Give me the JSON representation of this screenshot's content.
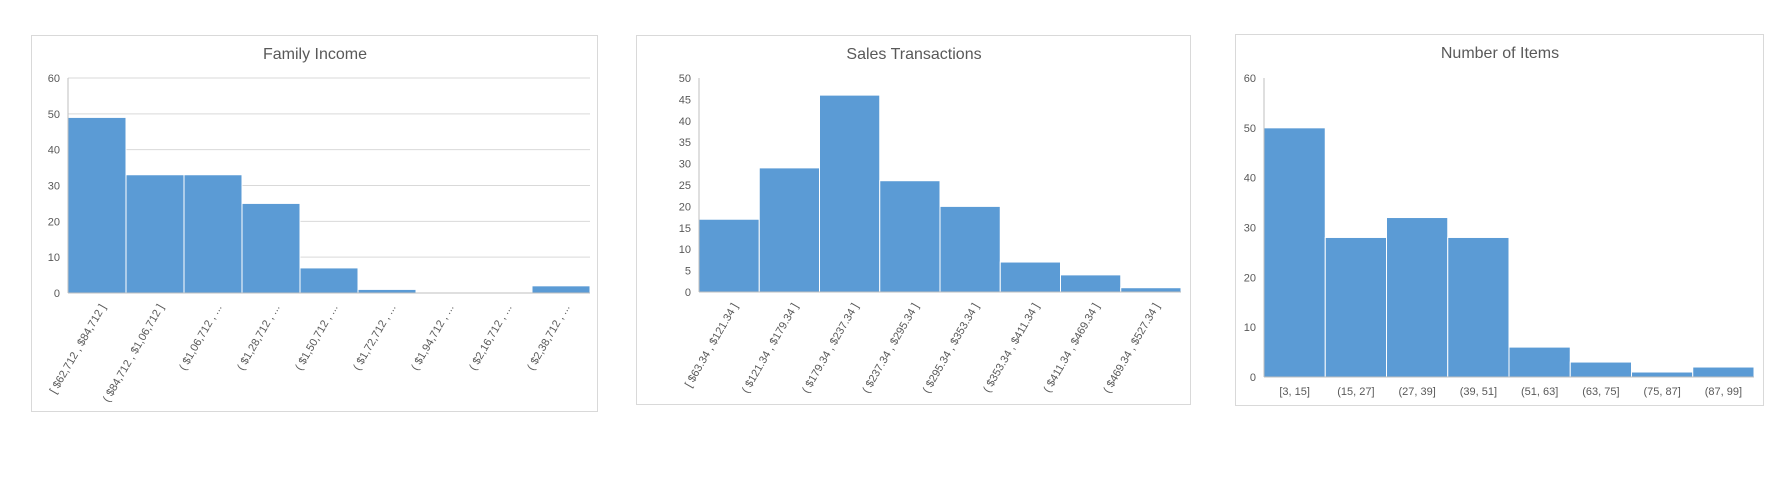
{
  "colors": {
    "bar": "#5b9bd5",
    "grid": "#d9d9d9",
    "axis": "#bfbfbf",
    "text": "#595959"
  },
  "chart_data": [
    {
      "type": "bar",
      "title": "Family Income",
      "categories": [
        "[ $62,712 , $84,712 ]",
        "( $84,712 , $1,06,712 ]",
        "( $1,06,712 , ...",
        "( $1,28,712 , ...",
        "( $1,50,712 , ...",
        "( $1,72,712 , ...",
        "( $1,94,712 , ...",
        "( $2,16,712 , ...",
        "( $2,38,712 , ..."
      ],
      "values": [
        49,
        33,
        33,
        25,
        7,
        1,
        0,
        0,
        2
      ],
      "ylim": [
        0,
        60
      ],
      "yticks": [
        0,
        10,
        20,
        30,
        40,
        50,
        60
      ],
      "grid": true,
      "label_style": "rotated"
    },
    {
      "type": "bar",
      "title": "Sales Transactions",
      "categories": [
        "[ $63.34 , $121.34 ]",
        "( $121.34 , $179.34 ]",
        "( $179.34 , $237.34 ]",
        "( $237.34 , $295.34 ]",
        "( $295.34 , $353.34 ]",
        "( $353.34 , $411.34 ]",
        "( $411.34 , $469.34 ]",
        "( $469.34 , $527.34 ]"
      ],
      "values": [
        17,
        29,
        46,
        26,
        20,
        7,
        4,
        1
      ],
      "ylim": [
        0,
        50
      ],
      "yticks": [
        0,
        5,
        10,
        15,
        20,
        25,
        30,
        35,
        40,
        45,
        50
      ],
      "grid": false,
      "label_style": "rotated"
    },
    {
      "type": "bar",
      "title": "Number of Items",
      "categories": [
        "[3, 15]",
        "(15, 27]",
        "(27, 39]",
        "(39, 51]",
        "(51, 63]",
        "(63, 75]",
        "(75, 87]",
        "(87, 99]"
      ],
      "values": [
        50,
        28,
        32,
        28,
        6,
        3,
        1,
        2
      ],
      "ylim": [
        0,
        60
      ],
      "yticks": [
        0,
        10,
        20,
        30,
        40,
        50,
        60
      ],
      "grid": false,
      "label_style": "horizontal"
    }
  ]
}
